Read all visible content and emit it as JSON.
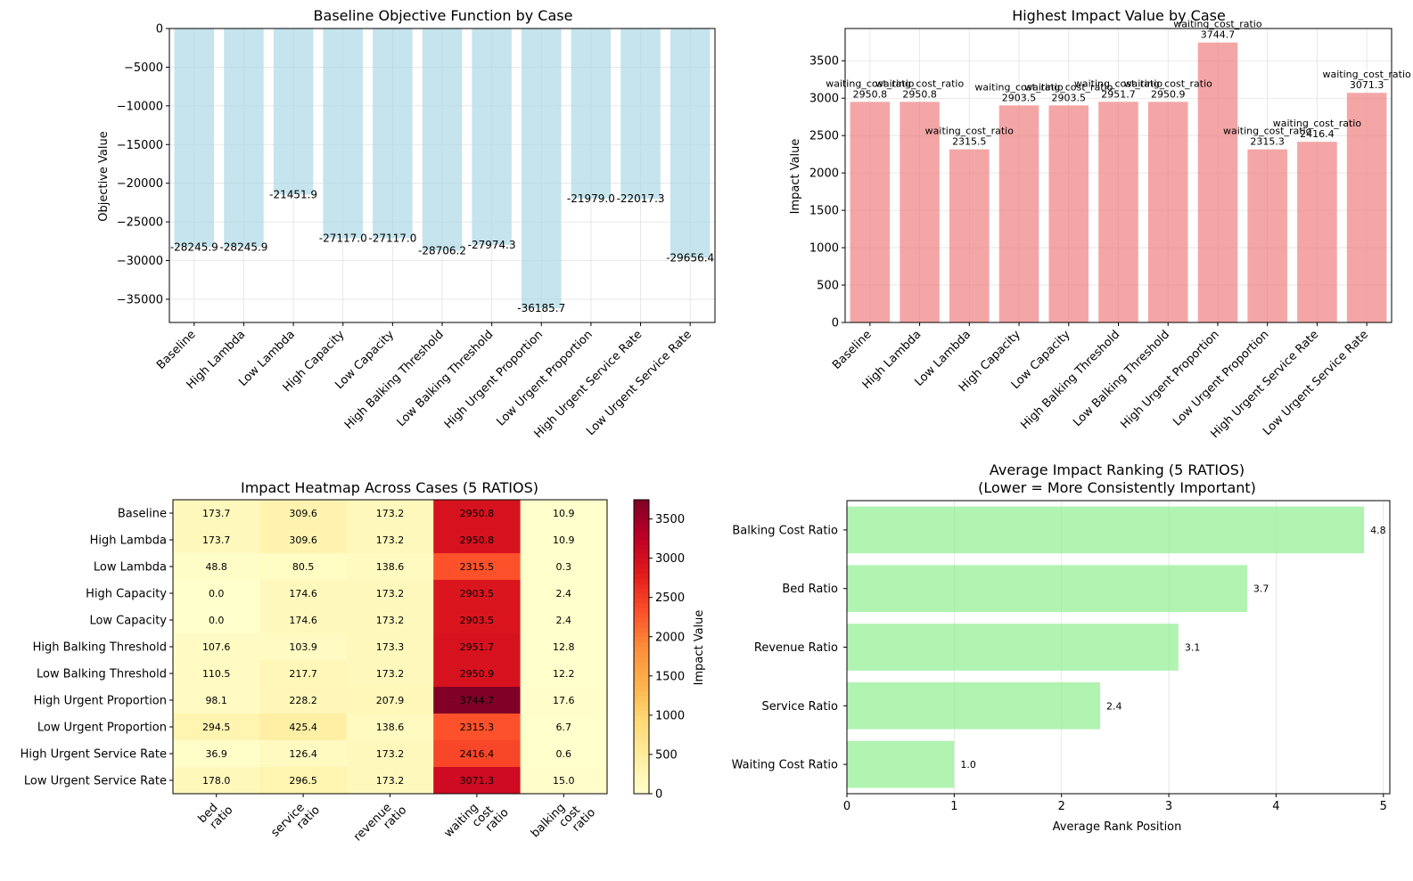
{
  "chart_data": [
    {
      "id": "baseline",
      "type": "bar",
      "title": "Baseline Objective Function by Case",
      "xlabel": "",
      "ylabel": "Objective Value",
      "ylim": [
        -38000,
        0
      ],
      "yticks": [
        0,
        -5000,
        -10000,
        -15000,
        -20000,
        -25000,
        -30000,
        -35000
      ],
      "ytick_labels": [
        "0",
        "−5000",
        "−10000",
        "−15000",
        "−20000",
        "−25000",
        "−30000",
        "−35000"
      ],
      "categories": [
        "Baseline",
        "High Lambda",
        "Low Lambda",
        "High Capacity",
        "Low Capacity",
        "High Balking Threshold",
        "Low Balking Threshold",
        "High Urgent Proportion",
        "Low Urgent Proportion",
        "High Urgent Service Rate",
        "Low Urgent Service Rate"
      ],
      "values": [
        -28245.9,
        -28245.9,
        -21451.9,
        -27117.0,
        -27117.0,
        -28706.2,
        -27974.3,
        -36185.7,
        -21979.0,
        -22017.3,
        -29656.4
      ],
      "data_labels": [
        "-28245.9",
        "-28245.9",
        "-21451.9",
        "-27117.0",
        "-27117.0",
        "-28706.2",
        "-27974.3",
        "-36185.7",
        "-21979.0",
        "-22017.3",
        "-29656.4"
      ],
      "color": "#add8e6",
      "grid": true
    },
    {
      "id": "highest",
      "type": "bar",
      "title": "Highest Impact Value by Case",
      "xlabel": "",
      "ylabel": "Impact Value",
      "ylim": [
        0,
        3931.9
      ],
      "yticks": [
        0,
        500,
        1000,
        1500,
        2000,
        2500,
        3000,
        3500
      ],
      "ytick_labels": [
        "0",
        "500",
        "1000",
        "1500",
        "2000",
        "2500",
        "3000",
        "3500"
      ],
      "categories": [
        "Baseline",
        "High Lambda",
        "Low Lambda",
        "High Capacity",
        "Low Capacity",
        "High Balking Threshold",
        "Low Balking Threshold",
        "High Urgent Proportion",
        "Low Urgent Proportion",
        "High Urgent Service Rate",
        "Low Urgent Service Rate"
      ],
      "values": [
        2950.8,
        2950.8,
        2315.5,
        2903.5,
        2903.5,
        2951.7,
        2950.9,
        3744.7,
        2315.3,
        2416.4,
        3071.3
      ],
      "data_labels": [
        "2950.8",
        "2950.8",
        "2315.5",
        "2903.5",
        "2903.5",
        "2951.7",
        "2950.9",
        "3744.7",
        "2315.3",
        "2416.4",
        "3071.3"
      ],
      "factor_labels": [
        "waiting_cost_ratio",
        "waiting_cost_ratio",
        "waiting_cost_ratio",
        "waiting_cost_ratio",
        "waiting_cost_ratio",
        "waiting_cost_ratio",
        "waiting_cost_ratio",
        "waiting_cost_ratio",
        "waiting_cost_ratio",
        "waiting_cost_ratio",
        "waiting_cost_ratio"
      ],
      "color": "#f08080",
      "grid": true
    },
    {
      "id": "heatmap",
      "type": "heatmap",
      "title": "Impact Heatmap Across Cases (5 RATIOS)",
      "rows": [
        "Baseline",
        "High Lambda",
        "Low Lambda",
        "High Capacity",
        "Low Capacity",
        "High Balking Threshold",
        "Low Balking Threshold",
        "High Urgent Proportion",
        "Low Urgent Proportion",
        "High Urgent Service Rate",
        "Low Urgent Service Rate"
      ],
      "columns": [
        [
          "bed",
          "ratio"
        ],
        [
          "service",
          "ratio"
        ],
        [
          "revenue",
          "ratio"
        ],
        [
          "waiting",
          "cost",
          "ratio"
        ],
        [
          "balking",
          "cost",
          "ratio"
        ]
      ],
      "values": [
        [
          173.7,
          309.6,
          173.2,
          2950.8,
          10.9
        ],
        [
          173.7,
          309.6,
          173.2,
          2950.8,
          10.9
        ],
        [
          48.8,
          80.5,
          138.6,
          2315.5,
          0.3
        ],
        [
          0.0,
          174.6,
          173.2,
          2903.5,
          2.4
        ],
        [
          0.0,
          174.6,
          173.2,
          2903.5,
          2.4
        ],
        [
          107.6,
          103.9,
          173.3,
          2951.7,
          12.8
        ],
        [
          110.5,
          217.7,
          173.2,
          2950.9,
          12.2
        ],
        [
          98.1,
          228.2,
          207.9,
          3744.7,
          17.6
        ],
        [
          294.5,
          425.4,
          138.6,
          2315.3,
          6.7
        ],
        [
          36.9,
          126.4,
          173.2,
          2416.4,
          0.6
        ],
        [
          178.0,
          296.5,
          173.2,
          3071.3,
          15.0
        ]
      ],
      "cell_labels": [
        [
          "173.7",
          "309.6",
          "173.2",
          "2950.8",
          "10.9"
        ],
        [
          "173.7",
          "309.6",
          "173.2",
          "2950.8",
          "10.9"
        ],
        [
          "48.8",
          "80.5",
          "138.6",
          "2315.5",
          "0.3"
        ],
        [
          "0.0",
          "174.6",
          "173.2",
          "2903.5",
          "2.4"
        ],
        [
          "0.0",
          "174.6",
          "173.2",
          "2903.5",
          "2.4"
        ],
        [
          "107.6",
          "103.9",
          "173.3",
          "2951.7",
          "12.8"
        ],
        [
          "110.5",
          "217.7",
          "173.2",
          "2950.9",
          "12.2"
        ],
        [
          "98.1",
          "228.2",
          "207.9",
          "3744.7",
          "17.6"
        ],
        [
          "294.5",
          "425.4",
          "138.6",
          "2315.3",
          "6.7"
        ],
        [
          "36.9",
          "126.4",
          "173.2",
          "2416.4",
          "0.6"
        ],
        [
          "178.0",
          "296.5",
          "173.2",
          "3071.3",
          "15.0"
        ]
      ],
      "colormap": "YlOrRd",
      "vmin": 0,
      "vmax": 3744.7,
      "colorbar_label": "Impact Value",
      "colorbar_ticks": [
        0,
        500,
        1000,
        1500,
        2000,
        2500,
        3000,
        3500
      ],
      "colorbar_tick_labels": [
        "0",
        "500",
        "1000",
        "1500",
        "2000",
        "2500",
        "3000",
        "3500"
      ]
    },
    {
      "id": "ranking",
      "type": "bar",
      "orientation": "horizontal",
      "title": "Average Impact Ranking (5 RATIOS)",
      "subtitle": "(Lower = More Consistently Important)",
      "xlabel": "Average Rank Position",
      "ylabel": "",
      "xlim": [
        0,
        5.06
      ],
      "xticks": [
        0,
        1,
        2,
        3,
        4,
        5
      ],
      "xtick_labels": [
        "0",
        "1",
        "2",
        "3",
        "4",
        "5"
      ],
      "categories": [
        "Balking Cost Ratio",
        "Bed Ratio",
        "Revenue Ratio",
        "Service Ratio",
        "Waiting Cost Ratio"
      ],
      "values": [
        4.82,
        3.73,
        3.09,
        2.36,
        1.0
      ],
      "data_labels": [
        "4.8",
        "3.7",
        "3.1",
        "2.4",
        "1.0"
      ],
      "color": "#90ee90",
      "grid": true
    }
  ]
}
